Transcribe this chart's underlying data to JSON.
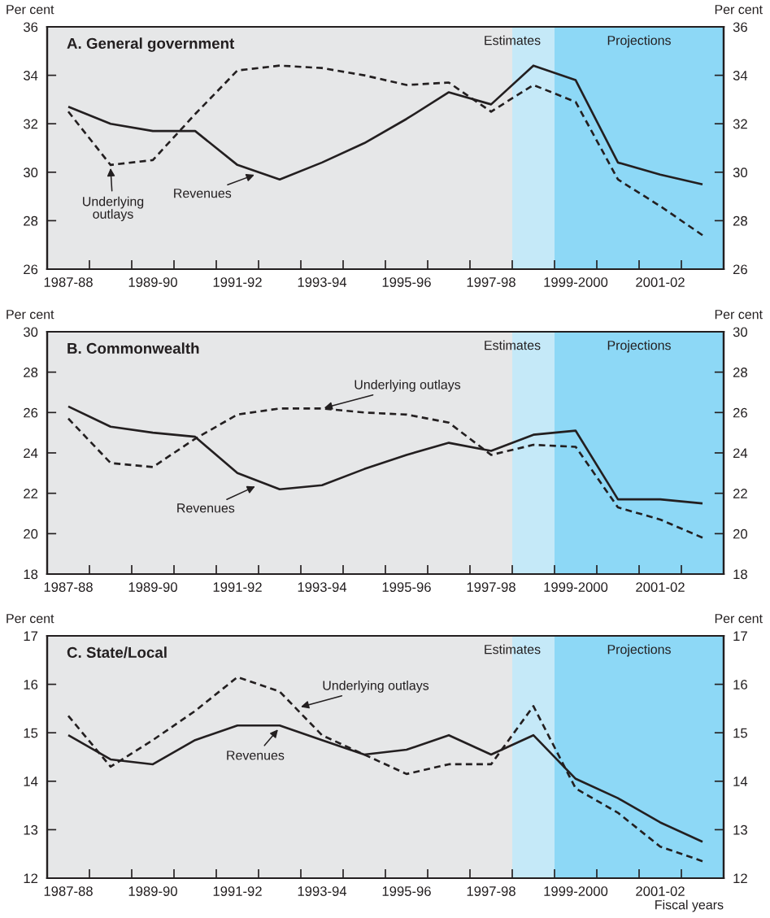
{
  "chart_data": [
    {
      "type": "line",
      "title": "A. General government",
      "ylabel": "Per cent",
      "y2label": "Per cent",
      "categories": [
        "1987-88",
        null,
        "1989-90",
        null,
        "1991-92",
        null,
        "1993-94",
        null,
        "1995-96",
        null,
        "1997-98",
        null,
        "1999-2000",
        null,
        "2001-02",
        null
      ],
      "ylim": [
        26,
        36
      ],
      "yticks": [
        26,
        28,
        30,
        32,
        34,
        36
      ],
      "y2lim": [
        26,
        36
      ],
      "y2ticks": [
        26,
        28,
        30,
        32,
        34,
        36
      ],
      "series": [
        {
          "color": "#231f20",
          "line_style": "solid",
          "values": [
            32.7,
            32.0,
            31.7,
            31.7,
            30.3,
            29.7,
            30.4,
            31.2,
            32.2,
            33.3,
            32.8,
            34.4,
            33.8,
            30.4,
            29.9,
            29.5
          ]
        },
        {
          "color": "#231f20",
          "line_style": "dashed",
          "values": [
            32.5,
            30.3,
            30.5,
            32.4,
            34.2,
            34.4,
            34.3,
            34.0,
            33.6,
            33.7,
            32.5,
            33.6,
            32.9,
            29.7,
            28.6,
            27.4
          ]
        }
      ],
      "bands": [
        {
          "axis": "x",
          "from": "1987-88",
          "to": "1997-98",
          "color": "#e6e7e8"
        }
      ],
      "annotations": [
        "Underlying\noutlays",
        "Revenues",
        "Estimates",
        "Projections"
      ]
    },
    {
      "type": "line",
      "title": "B. Commonwealth",
      "ylabel": "Per cent",
      "y2label": "Per cent",
      "categories": [
        "1987-88",
        null,
        "1989-90",
        null,
        "1991-92",
        null,
        "1993-94",
        null,
        "1995-96",
        null,
        "1997-98",
        null,
        "1999-2000",
        null,
        "2001-02",
        null
      ],
      "ylim": [
        18,
        30
      ],
      "yticks": [
        18,
        20,
        22,
        24,
        26,
        28,
        30
      ],
      "y2lim": [
        18,
        30
      ],
      "y2ticks": [
        18,
        20,
        22,
        24,
        26,
        28,
        30
      ],
      "series": [
        {
          "color": "#231f20",
          "line_style": "solid",
          "values": [
            26.3,
            25.3,
            25.0,
            24.8,
            23.0,
            22.2,
            22.4,
            23.2,
            23.9,
            24.5,
            24.1,
            24.9,
            25.1,
            21.7,
            21.7,
            21.5
          ]
        },
        {
          "color": "#231f20",
          "line_style": "dashed",
          "values": [
            25.7,
            23.5,
            23.3,
            24.7,
            25.9,
            26.2,
            26.2,
            26.0,
            25.9,
            25.5,
            23.9,
            24.4,
            24.3,
            21.3,
            20.7,
            19.8
          ]
        }
      ],
      "bands": [
        {
          "axis": "x",
          "from": "1987-88",
          "to": "1997-98",
          "color": "#e6e7e8"
        }
      ],
      "annotations": [
        {
          "text": "Underlying outlays",
          "x": "1993-94",
          "y": 26.2
        },
        "Revenues",
        "Estimates",
        "Projections"
      ]
    },
    {
      "type": "line",
      "title": "C. State/Local",
      "ylabel": "Per cent",
      "y2label": "Per cent",
      "xlabel": "Fiscal years",
      "categories": [
        "1987-88",
        null,
        "1989-90",
        null,
        "1991-92",
        null,
        "1993-94",
        null,
        "1995-96",
        null,
        "1997-98",
        null,
        "1999-2000",
        null,
        "2001-02",
        null
      ],
      "ylim": [
        12,
        17
      ],
      "yticks": [
        12,
        13,
        14,
        15,
        16,
        17
      ],
      "y2lim": [
        12,
        17
      ],
      "y2ticks": [
        12,
        13,
        14,
        15,
        16,
        17
      ],
      "series": [
        {
          "color": "#231f20",
          "line_style": "solid",
          "values": [
            14.95,
            14.45,
            14.35,
            14.85,
            15.15,
            15.15,
            14.85,
            14.55,
            14.65,
            14.95,
            14.55,
            14.95,
            14.05,
            13.65,
            13.15,
            12.75
          ]
        },
        {
          "color": "#231f20",
          "line_style": "dashed",
          "values": [
            15.35,
            14.3,
            14.85,
            15.45,
            16.15,
            15.85,
            14.95,
            14.55,
            14.15,
            14.35,
            14.35,
            15.55,
            13.85,
            13.35,
            12.65,
            12.35
          ]
        }
      ],
      "bands": [
        {
          "axis": "x",
          "from": "1987-88",
          "to": "1997-98",
          "color": "#e6e7e8"
        }
      ],
      "annotations": [
        "Underlying outlays",
        "Revenues",
        "Estimates",
        "Projections"
      ]
    }
  ]
}
